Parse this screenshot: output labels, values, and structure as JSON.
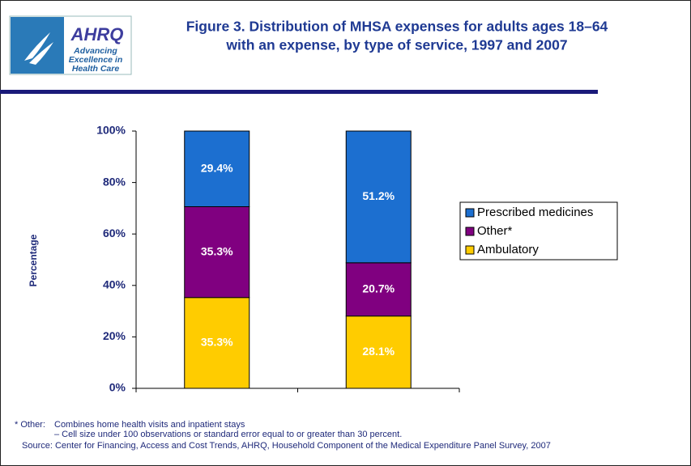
{
  "logo": {
    "brand": "AHRQ",
    "tagline": [
      "Advancing",
      "Excellence in",
      "Health Care"
    ]
  },
  "chart_data": {
    "type": "stacked_bar",
    "title": [
      "Figure 3. Distribution of MHSA expenses for adults ages 18–64",
      "with an expense, by type of service, 1997 and  2007"
    ],
    "y_label": "Percentage",
    "categories": [
      null,
      null
    ],
    "series": [
      {
        "name": "Ambulatory",
        "color": "#ffcc00",
        "values": [
          35.3,
          28.1
        ],
        "value_labels": [
          "35.3%",
          "28.1%"
        ]
      },
      {
        "name": "Other*",
        "color": "#800080",
        "values": [
          35.3,
          20.7
        ],
        "value_labels": [
          "35.3%",
          "20.7%"
        ]
      },
      {
        "name": "Prescribed medicines",
        "color": "#1c6fd0",
        "values": [
          29.4,
          51.2
        ],
        "value_labels": [
          "29.4%",
          "51.2%"
        ]
      }
    ],
    "ylim": [
      0,
      100
    ],
    "yticks": [
      {
        "value": 0,
        "label": "0%"
      },
      {
        "value": 20,
        "label": "20%"
      },
      {
        "value": 40,
        "label": "40%"
      },
      {
        "value": 60,
        "label": "60%"
      },
      {
        "value": 80,
        "label": "80%"
      },
      {
        "value": 100,
        "label": "100%"
      }
    ],
    "legend": "right",
    "notes": [
      "* Other:",
      "Combines home health visits and inpatient stays",
      "– Cell size under 100 observations or standard error equal to or greater than 30 percent.",
      "Source: Center for Financing, Access and Cost Trends, AHRQ,  Household Component of the Medical Expenditure Panel Survey, 2007"
    ]
  }
}
